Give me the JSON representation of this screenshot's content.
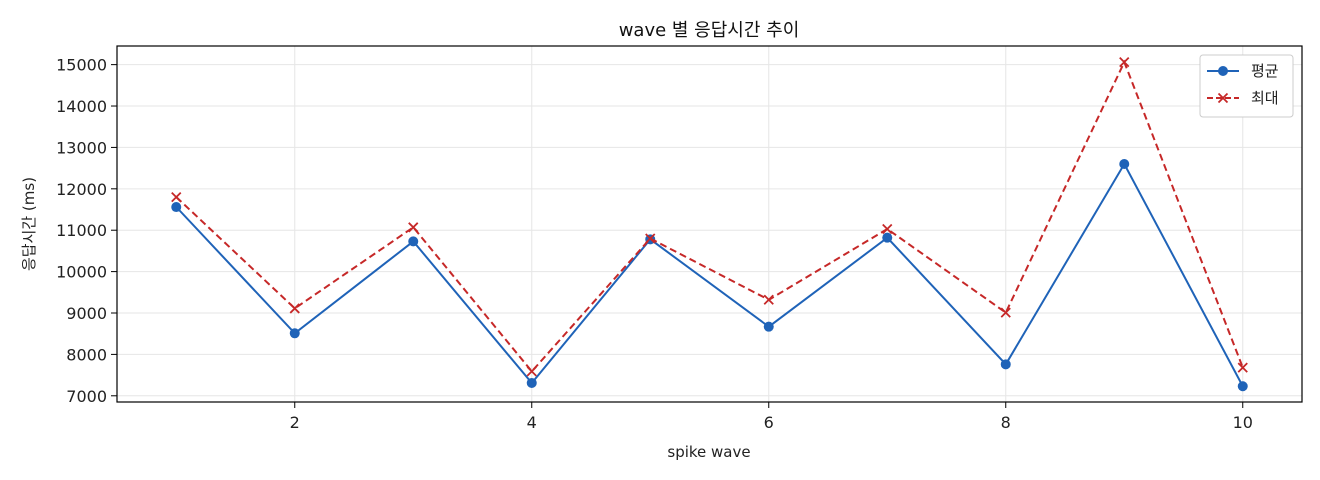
{
  "chart_data": {
    "type": "line",
    "title": "wave 별 응답시간 추이",
    "xlabel": "spike wave",
    "ylabel": "응답시간 (ms)",
    "x": [
      1,
      2,
      3,
      4,
      5,
      6,
      7,
      8,
      9,
      10
    ],
    "xlim": [
      0.5,
      10.5
    ],
    "ylim": [
      6850,
      15450
    ],
    "xticks": [
      2,
      4,
      6,
      8,
      10
    ],
    "yticks": [
      7000,
      8000,
      9000,
      10000,
      11000,
      12000,
      13000,
      14000,
      15000
    ],
    "grid": true,
    "legend_position": "top-right",
    "series": [
      {
        "name": "평균",
        "color": "#1f63b8",
        "line_style": "solid",
        "marker": "circle",
        "values": [
          11560,
          8510,
          10730,
          7310,
          10780,
          8670,
          10820,
          7760,
          12600,
          7230
        ]
      },
      {
        "name": "최대",
        "color": "#c62828",
        "line_style": "dashed",
        "marker": "x",
        "values": [
          11800,
          9110,
          11070,
          7590,
          10800,
          9320,
          11030,
          9010,
          15060,
          7680
        ]
      }
    ]
  }
}
